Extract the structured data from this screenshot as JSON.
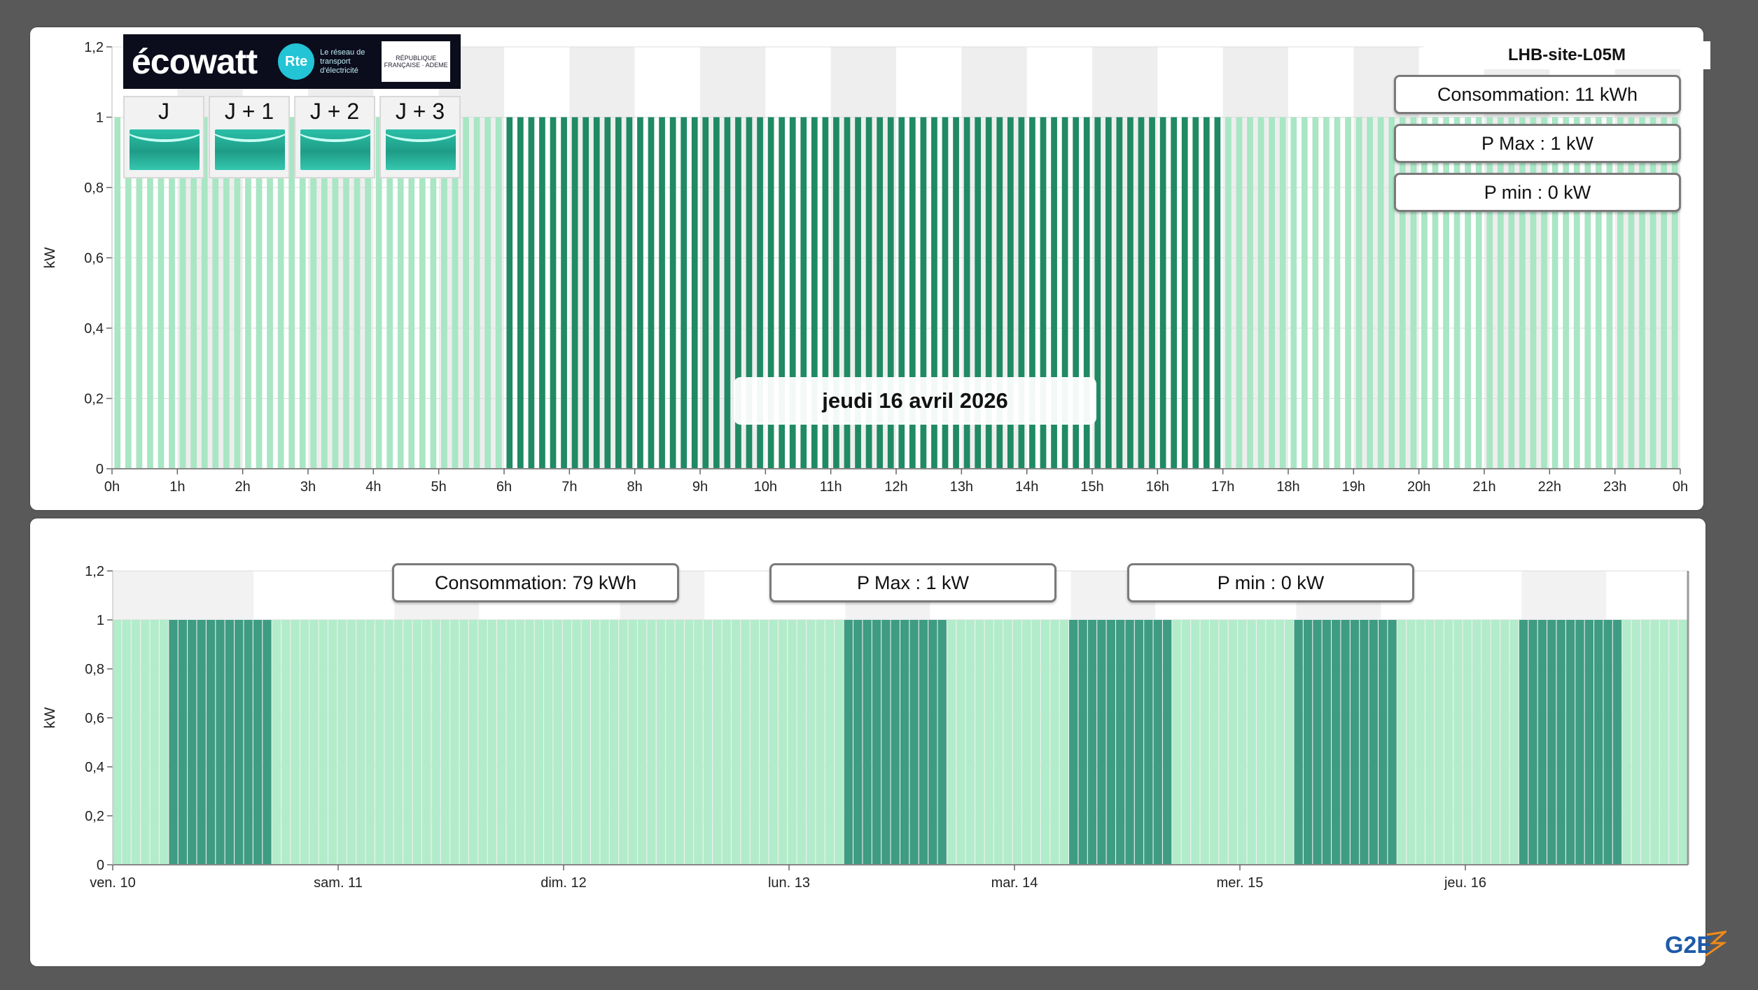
{
  "top_panel": {
    "site_name": "LHB-site-L05M",
    "date_label": "jeudi 16 avril 2026",
    "stats": {
      "consumption": "Consommation: 11 kWh",
      "p_max": "P Max :  1 kW",
      "p_min": "P min : 0 kW"
    },
    "ecowatt": {
      "brand": "écowatt",
      "rte_mark": "Rte",
      "rte_caption": "Le réseau de transport d'électricité",
      "gov_mark": "RÉPUBLIQUE FRANÇAISE · ADEME",
      "days": [
        {
          "label": "J",
          "signal": "green"
        },
        {
          "label": "J + 1",
          "signal": "green"
        },
        {
          "label": "J + 2",
          "signal": "green"
        },
        {
          "label": "J + 3",
          "signal": "green"
        }
      ]
    }
  },
  "bottom_panel": {
    "stats": {
      "consumption": "Consommation: 79 kWh",
      "p_max": "P Max :  1 kW",
      "p_min": "P min : 0 kW"
    },
    "brand": "G2E"
  },
  "chart_data": [
    {
      "type": "bar",
      "title": "",
      "xlabel": "",
      "ylabel": "kW",
      "ylim": [
        0,
        1.2
      ],
      "y_ticks": [
        "0",
        "0,2",
        "0,4",
        "0,6",
        "0,8",
        "1",
        "1,2"
      ],
      "x_tick_labels": [
        "0h",
        "1h",
        "2h",
        "3h",
        "4h",
        "5h",
        "6h",
        "7h",
        "8h",
        "9h",
        "10h",
        "11h",
        "12h",
        "13h",
        "14h",
        "15h",
        "16h",
        "17h",
        "18h",
        "19h",
        "20h",
        "21h",
        "22h",
        "23h",
        "0h"
      ],
      "x_range_hours": [
        0,
        24
      ],
      "interval_minutes": 10,
      "series": [
        {
          "level": "light",
          "hours": [
            [
              0,
              6
            ],
            [
              17,
              24
            ]
          ],
          "value": 1
        },
        {
          "level": "dark",
          "hours": [
            [
              6,
              17
            ]
          ],
          "value": 1
        }
      ],
      "colors": {
        "light": "#a8e6c4",
        "dark": "#1f8a63"
      },
      "grid": true
    },
    {
      "type": "bar",
      "title": "",
      "xlabel": "",
      "ylabel": "kW",
      "ylim": [
        0,
        1.2
      ],
      "y_ticks": [
        "0",
        "0,2",
        "0,4",
        "0,6",
        "0,8",
        "1",
        "1,2"
      ],
      "x_tick_labels": [
        "ven. 10",
        "sam. 11",
        "dim. 12",
        "lun. 13",
        "mar. 14",
        "mer. 15",
        "jeu. 16"
      ],
      "x_range_days": [
        0,
        7
      ],
      "interval_minutes": 60,
      "series": [
        {
          "level": "dark",
          "days": [
            [
              0.25,
              0.7
            ],
            [
              3.25,
              3.7
            ],
            [
              4.25,
              4.7
            ],
            [
              5.25,
              5.7
            ],
            [
              6.25,
              6.7
            ]
          ],
          "value": 1
        },
        {
          "level": "light",
          "days": [
            [
              0,
              7
            ]
          ],
          "value": 1
        }
      ],
      "colors": {
        "light": "#b2ecca",
        "dark": "#3e9c82"
      },
      "grid": true
    }
  ]
}
